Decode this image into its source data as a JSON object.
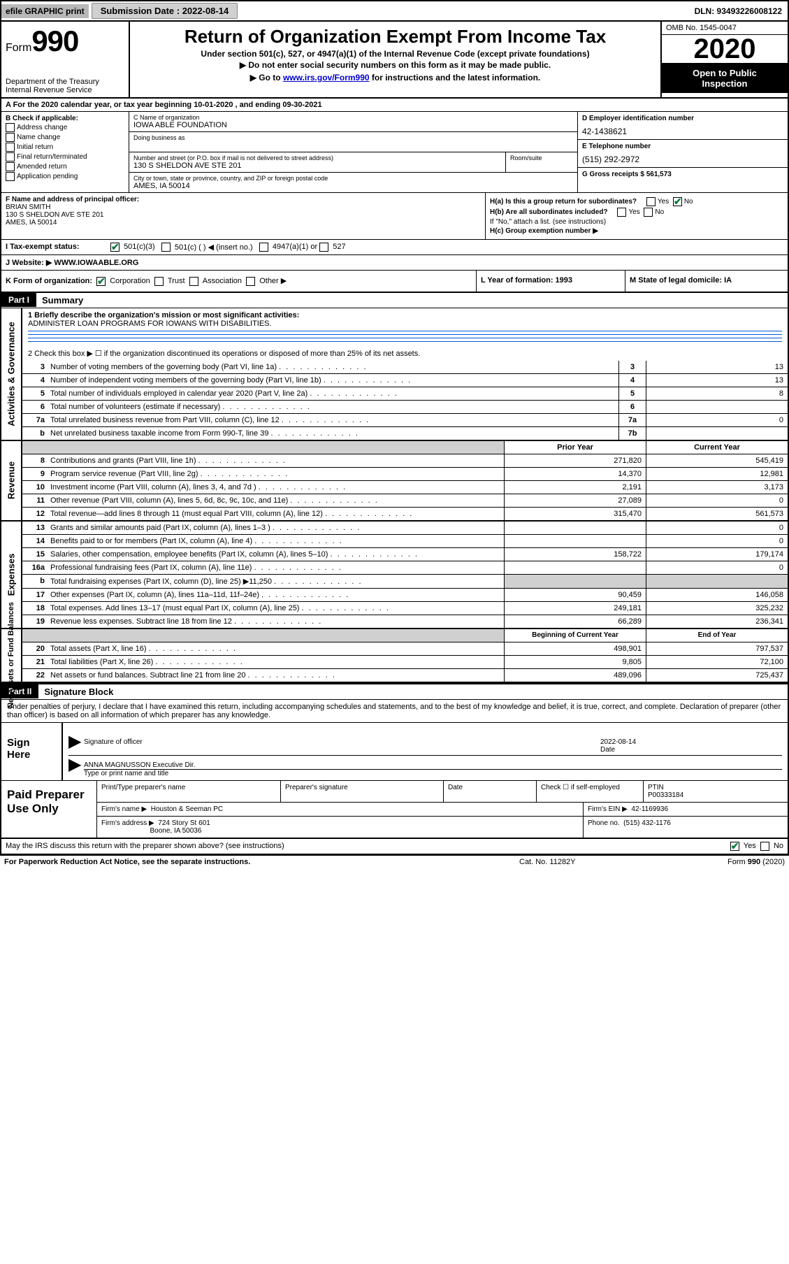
{
  "topbar": {
    "efile": "efile GRAPHIC print",
    "submission": "Submission Date : 2022-08-14",
    "dln": "DLN: 93493226008122"
  },
  "header": {
    "form_label": "Form",
    "form_num": "990",
    "dept": "Department of the Treasury\nInternal Revenue Service",
    "title": "Return of Organization Exempt From Income Tax",
    "sub1": "Under section 501(c), 527, or 4947(a)(1) of the Internal Revenue Code (except private foundations)",
    "sub2": "▶ Do not enter social security numbers on this form as it may be made public.",
    "sub3_pre": "▶ Go to ",
    "sub3_link": "www.irs.gov/Form990",
    "sub3_post": " for instructions and the latest information.",
    "omb": "OMB No. 1545-0047",
    "year": "2020",
    "open1": "Open to Public",
    "open2": "Inspection"
  },
  "line_a": "A For the 2020 calendar year, or tax year beginning 10-01-2020    , and ending 09-30-2021",
  "box_b": {
    "title": "B Check if applicable:",
    "items": [
      "Address change",
      "Name change",
      "Initial return",
      "Final return/terminated",
      "Amended return",
      "Application pending"
    ]
  },
  "box_c": {
    "lbl_name": "C Name of organization",
    "org": "IOWA ABLE FOUNDATION",
    "dba_lbl": "Doing business as",
    "addr_lbl": "Number and street (or P.O. box if mail is not delivered to street address)",
    "room_lbl": "Room/suite",
    "addr": "130 S SHELDON AVE STE 201",
    "city_lbl": "City or town, state or province, country, and ZIP or foreign postal code",
    "city": "AMES, IA  50014"
  },
  "box_d": {
    "lbl": "D Employer identification number",
    "val": "42-1438621"
  },
  "box_e": {
    "lbl": "E Telephone number",
    "val": "(515) 292-2972"
  },
  "box_g": {
    "lbl": "G Gross receipts $ 561,573"
  },
  "box_f": {
    "lbl": "F  Name and address of principal officer:",
    "name": "BRIAN SMITH",
    "addr1": "130 S SHELDON AVE STE 201",
    "addr2": "AMES, IA  50014"
  },
  "box_h": {
    "ha": "H(a)  Is this a group return for subordinates?",
    "hb": "H(b)  Are all subordinates included?",
    "hb_note": "If \"No,\" attach a list. (see instructions)",
    "hc": "H(c)  Group exemption number ▶",
    "yes": "Yes",
    "no": "No"
  },
  "row_i": {
    "lbl": "I    Tax-exempt status:",
    "o1": "501(c)(3)",
    "o2": "501(c) (  ) ◀ (insert no.)",
    "o3": "4947(a)(1) or",
    "o4": "527"
  },
  "row_j": {
    "lbl": "J    Website: ▶ ",
    "val": "WWW.IOWAABLE.ORG"
  },
  "row_k": {
    "k_lbl": "K Form of organization:",
    "k_opts": [
      "Corporation",
      "Trust",
      "Association",
      "Other ▶"
    ],
    "l": "L Year of formation: 1993",
    "m": "M State of legal domicile: IA"
  },
  "part1": {
    "badge": "Part I",
    "title": "Summary"
  },
  "summary_q1": "1   Briefly describe the organization's mission or most significant activities:",
  "summary_mission": "ADMINISTER LOAN PROGRAMS FOR IOWANS WITH DISABILITIES.",
  "summary_q2": "2   Check this box ▶ ☐  if the organization discontinued its operations or disposed of more than 25% of its net assets.",
  "gov_rows": [
    {
      "n": "3",
      "d": "Number of voting members of the governing body (Part VI, line 1a)",
      "box": "3",
      "v": "13"
    },
    {
      "n": "4",
      "d": "Number of independent voting members of the governing body (Part VI, line 1b)",
      "box": "4",
      "v": "13"
    },
    {
      "n": "5",
      "d": "Total number of individuals employed in calendar year 2020 (Part V, line 2a)",
      "box": "5",
      "v": "8"
    },
    {
      "n": "6",
      "d": "Total number of volunteers (estimate if necessary)",
      "box": "6",
      "v": ""
    },
    {
      "n": "7a",
      "d": "Total unrelated business revenue from Part VIII, column (C), line 12",
      "box": "7a",
      "v": "0"
    },
    {
      "n": "b",
      "d": "Net unrelated business taxable income from Form 990-T, line 39",
      "box": "7b",
      "v": ""
    }
  ],
  "two_col_header": {
    "prior": "Prior Year",
    "current": "Current Year"
  },
  "rev_rows": [
    {
      "n": "8",
      "d": "Contributions and grants (Part VIII, line 1h)",
      "p": "271,820",
      "c": "545,419"
    },
    {
      "n": "9",
      "d": "Program service revenue (Part VIII, line 2g)",
      "p": "14,370",
      "c": "12,981"
    },
    {
      "n": "10",
      "d": "Investment income (Part VIII, column (A), lines 3, 4, and 7d )",
      "p": "2,191",
      "c": "3,173"
    },
    {
      "n": "11",
      "d": "Other revenue (Part VIII, column (A), lines 5, 6d, 8c, 9c, 10c, and 11e)",
      "p": "27,089",
      "c": "0"
    },
    {
      "n": "12",
      "d": "Total revenue—add lines 8 through 11 (must equal Part VIII, column (A), line 12)",
      "p": "315,470",
      "c": "561,573"
    }
  ],
  "exp_rows": [
    {
      "n": "13",
      "d": "Grants and similar amounts paid (Part IX, column (A), lines 1–3 )",
      "p": "",
      "c": "0"
    },
    {
      "n": "14",
      "d": "Benefits paid to or for members (Part IX, column (A), line 4)",
      "p": "",
      "c": "0"
    },
    {
      "n": "15",
      "d": "Salaries, other compensation, employee benefits (Part IX, column (A), lines 5–10)",
      "p": "158,722",
      "c": "179,174"
    },
    {
      "n": "16a",
      "d": "Professional fundraising fees (Part IX, column (A), line 11e)",
      "p": "",
      "c": "0"
    },
    {
      "n": "b",
      "d": "Total fundraising expenses (Part IX, column (D), line 25) ▶11,250",
      "p": "GRAY",
      "c": "GRAY"
    },
    {
      "n": "17",
      "d": "Other expenses (Part IX, column (A), lines 11a–11d, 11f–24e)",
      "p": "90,459",
      "c": "146,058"
    },
    {
      "n": "18",
      "d": "Total expenses. Add lines 13–17 (must equal Part IX, column (A), line 25)",
      "p": "249,181",
      "c": "325,232"
    },
    {
      "n": "19",
      "d": "Revenue less expenses. Subtract line 18 from line 12",
      "p": "66,289",
      "c": "236,341"
    }
  ],
  "na_header": {
    "prior": "Beginning of Current Year",
    "current": "End of Year"
  },
  "na_rows": [
    {
      "n": "20",
      "d": "Total assets (Part X, line 16)",
      "p": "498,901",
      "c": "797,537"
    },
    {
      "n": "21",
      "d": "Total liabilities (Part X, line 26)",
      "p": "9,805",
      "c": "72,100"
    },
    {
      "n": "22",
      "d": "Net assets or fund balances. Subtract line 21 from line 20",
      "p": "489,096",
      "c": "725,437"
    }
  ],
  "vtabs": {
    "gov": "Activities & Governance",
    "rev": "Revenue",
    "exp": "Expenses",
    "na": "Net Assets or\nFund Balances"
  },
  "part2": {
    "badge": "Part II",
    "title": "Signature Block"
  },
  "sig_intro": "Under penalties of perjury, I declare that I have examined this return, including accompanying schedules and statements, and to the best of my knowledge and belief, it is true, correct, and complete. Declaration of preparer (other than officer) is based on all information of which preparer has any knowledge.",
  "sign": {
    "here": "Sign Here",
    "sig_officer": "Signature of officer",
    "date": "Date",
    "date_val": "2022-08-14",
    "name": "ANNA MAGNUSSON  Executive Dir.",
    "name_lbl": "Type or print name and title"
  },
  "prep": {
    "title": "Paid Preparer Use Only",
    "h1": "Print/Type preparer's name",
    "h2": "Preparer's signature",
    "h3": "Date",
    "h4a": "Check ☐ if self-employed",
    "h4b_lbl": "PTIN",
    "h4b_val": "P00333184",
    "firm_lbl": "Firm's name    ▶",
    "firm_val": "Houston & Seeman PC",
    "ein_lbl": "Firm's EIN ▶",
    "ein_val": "42-1169936",
    "addr_lbl": "Firm's address ▶",
    "addr1": "724 Story St 601",
    "addr2": "Boone, IA  50036",
    "phone_lbl": "Phone no.",
    "phone_val": "(515) 432-1176"
  },
  "discuss": {
    "q": "May the IRS discuss this return with the preparer shown above? (see instructions)",
    "yes": "Yes",
    "no": "No"
  },
  "footer": {
    "left": "For Paperwork Reduction Act Notice, see the separate instructions.",
    "mid": "Cat. No. 11282Y",
    "right": "Form 990 (2020)"
  },
  "colors": {
    "rule_blue": "#0056d6",
    "link": "#0000cc",
    "check_green": "#0b7d3b",
    "gray_bg": "#d0d0d0",
    "topbar_gray": "#b8b8b8"
  }
}
